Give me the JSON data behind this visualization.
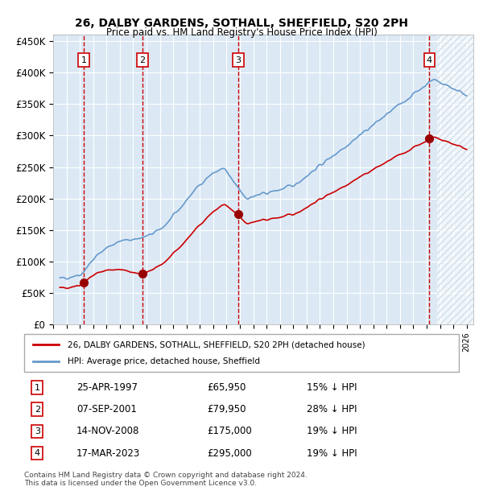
{
  "title": "26, DALBY GARDENS, SOTHALL, SHEFFIELD, S20 2PH",
  "subtitle": "Price paid vs. HM Land Registry's House Price Index (HPI)",
  "ylabel_ticks": [
    "£0",
    "£50K",
    "£100K",
    "£150K",
    "£200K",
    "£250K",
    "£300K",
    "£350K",
    "£400K",
    "£450K"
  ],
  "ytick_vals": [
    0,
    50000,
    100000,
    150000,
    200000,
    250000,
    300000,
    350000,
    400000,
    450000
  ],
  "ylim": [
    0,
    460000
  ],
  "xlim_start": 1995.5,
  "xlim_end": 2026.5,
  "background_color": "#dce9f5",
  "hatch_color": "#b8cfe0",
  "grid_color": "#ffffff",
  "sale_dates": [
    1997.31,
    2001.68,
    2008.87,
    2023.21
  ],
  "sale_prices": [
    65950,
    79950,
    175000,
    295000
  ],
  "sale_labels": [
    "1",
    "2",
    "3",
    "4"
  ],
  "sale_date_strs": [
    "25-APR-1997",
    "07-SEP-2001",
    "14-NOV-2008",
    "17-MAR-2023"
  ],
  "sale_price_strs": [
    "£65,950",
    "£79,950",
    "£175,000",
    "£295,000"
  ],
  "sale_hpi_strs": [
    "15% ↓ HPI",
    "28% ↓ HPI",
    "19% ↓ HPI",
    "19% ↓ HPI"
  ],
  "red_line_color": "#cc0000",
  "blue_line_color": "#6699cc",
  "marker_color": "#990000",
  "dashed_line_color": "#cc0000",
  "legend_label_red": "26, DALBY GARDENS, SOTHALL, SHEFFIELD, S20 2PH (detached house)",
  "legend_label_blue": "HPI: Average price, detached house, Sheffield",
  "footnote": "Contains HM Land Registry data © Crown copyright and database right 2024.\nThis data is licensed under the Open Government Licence v3.0."
}
